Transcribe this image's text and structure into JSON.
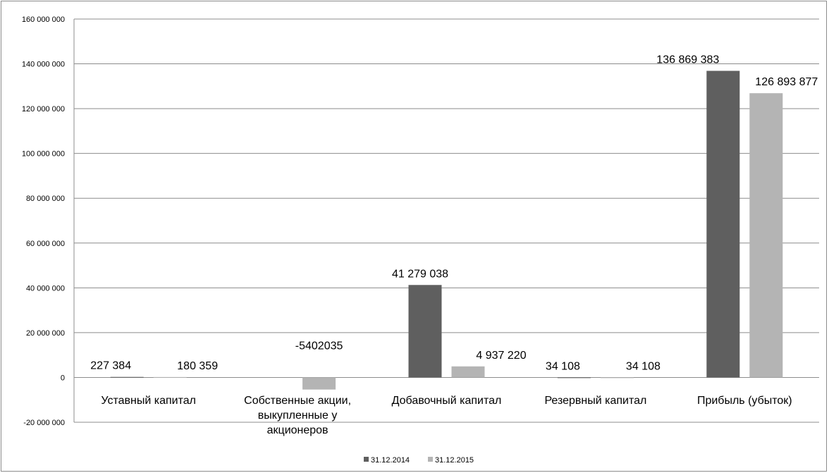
{
  "chart_data": {
    "type": "bar",
    "title": "",
    "xlabel": "",
    "ylabel": "",
    "ylim": [
      -20000000,
      160000000
    ],
    "yticks": [
      -20000000,
      0,
      20000000,
      40000000,
      60000000,
      80000000,
      100000000,
      120000000,
      140000000,
      160000000
    ],
    "ytick_labels": [
      "-20 000 000",
      "0",
      "20 000 000",
      "40 000 000",
      "60 000 000",
      "80 000 000",
      "100 000 000",
      "120 000 000",
      "140 000 000",
      "160 000 000"
    ],
    "grid": true,
    "legend_position": "bottom",
    "categories": [
      [
        "Уставный капитал"
      ],
      [
        "Собственные акции,",
        "выкупленные у",
        "акционеров"
      ],
      [
        "Добавочный капитал"
      ],
      [
        "Резервный капитал"
      ],
      [
        "Прибыль (убыток)"
      ]
    ],
    "series": [
      {
        "name": "31.12.2014",
        "color": "#5f5f5f",
        "values": [
          227384,
          0,
          41279038,
          34108,
          136869383
        ],
        "labels": [
          "227 384",
          "",
          "41 279 038",
          "34 108",
          "136 869 383"
        ]
      },
      {
        "name": "31.12.2015",
        "color": "#b4b4b4",
        "values": [
          180359,
          -5402035,
          4937220,
          34108,
          126893877
        ],
        "labels": [
          "180 359",
          "-5402035",
          "4 937 220",
          "34 108",
          "126 893 877"
        ]
      }
    ]
  }
}
